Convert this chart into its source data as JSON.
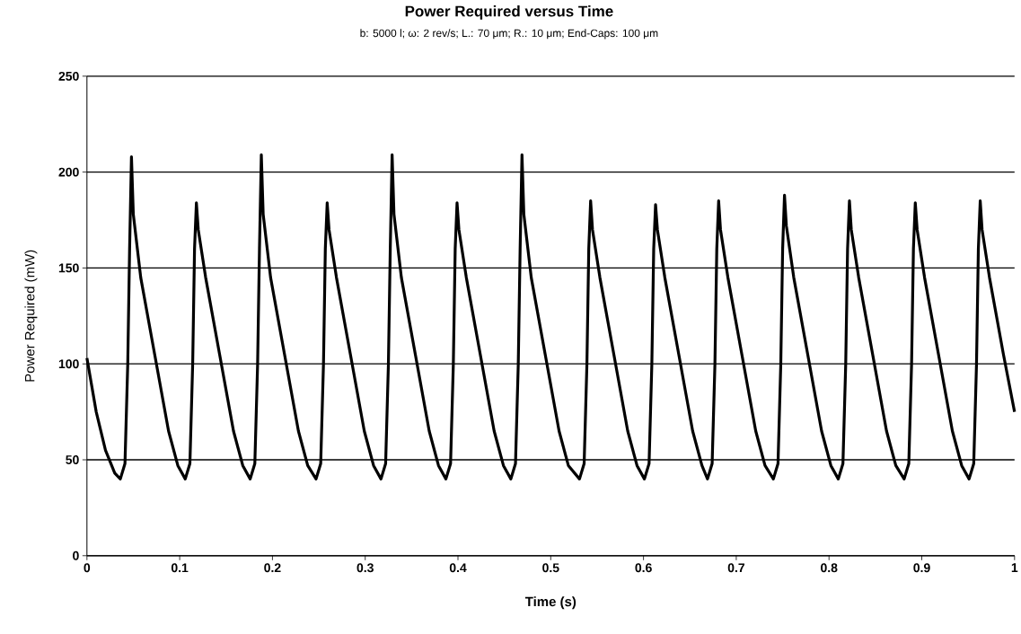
{
  "chart_data": {
    "type": "line",
    "title": "Power Required versus Time",
    "subtitle": "b: 5000 l; ω: 2 rev/s; L.: 70 μm; R.: 10 μm; End-Caps: 100 μm",
    "xlabel": "Time (s)",
    "ylabel": "Power Required (mW)",
    "x": [
      0,
      0.01,
      0.02,
      0.03,
      0.036,
      0.041,
      0.044,
      0.046,
      0.048,
      0.05,
      0.058,
      0.073,
      0.088,
      0.098,
      0.106,
      0.111,
      0.114,
      0.116,
      0.118,
      0.12,
      0.128,
      0.143,
      0.158,
      0.168,
      0.176,
      0.181,
      0.184,
      0.186,
      0.188,
      0.19,
      0.198,
      0.213,
      0.228,
      0.238,
      0.247,
      0.252,
      0.255,
      0.257,
      0.259,
      0.261,
      0.269,
      0.284,
      0.299,
      0.309,
      0.317,
      0.322,
      0.325,
      0.327,
      0.329,
      0.331,
      0.339,
      0.354,
      0.369,
      0.379,
      0.387,
      0.392,
      0.395,
      0.397,
      0.399,
      0.401,
      0.409,
      0.424,
      0.439,
      0.449,
      0.457,
      0.462,
      0.465,
      0.467,
      0.469,
      0.471,
      0.479,
      0.494,
      0.509,
      0.519,
      0.531,
      0.536,
      0.539,
      0.541,
      0.543,
      0.545,
      0.553,
      0.568,
      0.583,
      0.593,
      0.601,
      0.606,
      0.609,
      0.611,
      0.613,
      0.615,
      0.623,
      0.638,
      0.653,
      0.663,
      0.669,
      0.674,
      0.677,
      0.679,
      0.681,
      0.683,
      0.691,
      0.706,
      0.721,
      0.731,
      0.74,
      0.745,
      0.748,
      0.75,
      0.752,
      0.754,
      0.762,
      0.777,
      0.792,
      0.802,
      0.81,
      0.815,
      0.818,
      0.82,
      0.822,
      0.824,
      0.832,
      0.847,
      0.862,
      0.872,
      0.881,
      0.886,
      0.889,
      0.891,
      0.893,
      0.895,
      0.903,
      0.918,
      0.933,
      0.943,
      0.951,
      0.956,
      0.959,
      0.961,
      0.963,
      0.965,
      0.973,
      0.988,
      1.0
    ],
    "series": [
      {
        "color": "#000000",
        "values": [
          103,
          75,
          55,
          43,
          40,
          48,
          100,
          160,
          208,
          178,
          145,
          105,
          65,
          47,
          40,
          48,
          100,
          160,
          184,
          170,
          145,
          105,
          65,
          47,
          40,
          48,
          100,
          160,
          209,
          178,
          145,
          105,
          65,
          47,
          40,
          48,
          100,
          160,
          184,
          170,
          145,
          105,
          65,
          47,
          40,
          48,
          100,
          160,
          209,
          178,
          145,
          105,
          65,
          47,
          40,
          48,
          100,
          160,
          184,
          170,
          145,
          105,
          65,
          47,
          40,
          48,
          100,
          160,
          209,
          178,
          145,
          105,
          65,
          47,
          40,
          48,
          100,
          160,
          185,
          170,
          145,
          105,
          65,
          47,
          40,
          48,
          100,
          160,
          183,
          170,
          145,
          105,
          65,
          47,
          40,
          48,
          100,
          160,
          185,
          170,
          145,
          105,
          65,
          47,
          40,
          48,
          100,
          160,
          188,
          172,
          145,
          105,
          65,
          47,
          40,
          48,
          100,
          160,
          185,
          170,
          145,
          105,
          65,
          47,
          40,
          48,
          100,
          160,
          184,
          170,
          145,
          105,
          65,
          47,
          40,
          48,
          100,
          160,
          185,
          170,
          145,
          105,
          75
        ]
      }
    ],
    "xlim": [
      0,
      1
    ],
    "ylim": [
      0,
      250
    ],
    "xticks": [
      0,
      0.1,
      0.2,
      0.3,
      0.4,
      0.5,
      0.6,
      0.7,
      0.8,
      0.9,
      1
    ],
    "yticks": [
      0,
      50,
      100,
      150,
      200,
      250
    ],
    "grid": "y"
  }
}
